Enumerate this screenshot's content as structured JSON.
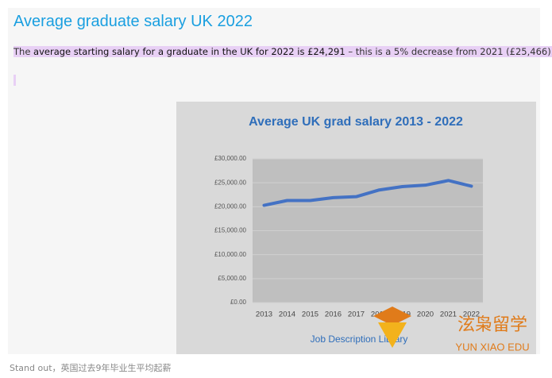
{
  "heading": "Average graduate salary UK 2022",
  "paragraph": {
    "lead": "The ",
    "bold": "average starting salary for a graduate in the UK for 2022 is £24,291",
    "rest": " – this is a 5% decrease from 2021 (£25,466)."
  },
  "chart_data": {
    "type": "line",
    "title": "Average UK grad salary 2013 - 2022",
    "categories": [
      "2013",
      "2014",
      "2015",
      "2016",
      "2017",
      "2018",
      "2019",
      "2020",
      "2021",
      "2022"
    ],
    "values": [
      20300,
      21300,
      21300,
      21900,
      22100,
      23500,
      24200,
      24500,
      25466,
      24291
    ],
    "color": "#4472c4",
    "ylim": [
      0,
      30000
    ],
    "yticks": [
      {
        "value": 0,
        "label": "£0.00"
      },
      {
        "value": 5000,
        "label": "£5,000.00"
      },
      {
        "value": 10000,
        "label": "£10,000.00"
      },
      {
        "value": 15000,
        "label": "£15,000.00"
      },
      {
        "value": 20000,
        "label": "£20,000.00"
      },
      {
        "value": 25000,
        "label": "£25,000.00"
      },
      {
        "value": 30000,
        "label": "£30,000.00"
      }
    ],
    "grid": true,
    "source": "Job Description Library"
  },
  "caption": "Stand out，英国过去9年毕业生平均起薪",
  "watermark": {
    "brand": "泫枭留学",
    "latin": "YUN XIAO EDU"
  }
}
